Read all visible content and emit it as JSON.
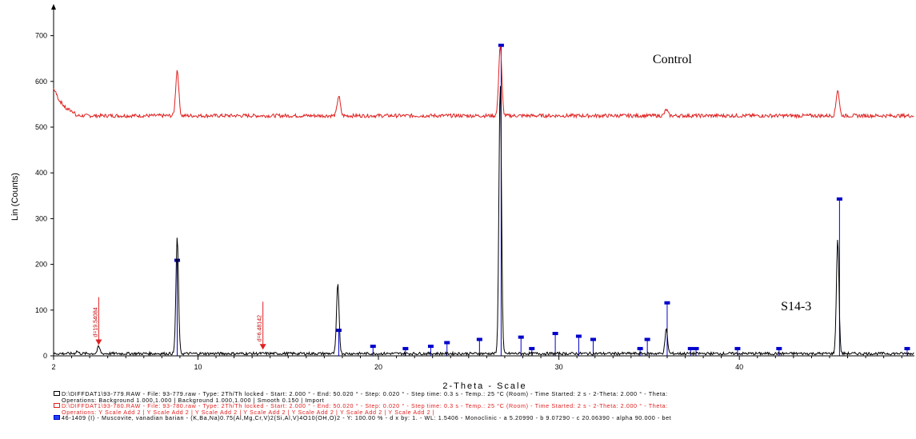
{
  "chart_data": {
    "type": "line",
    "title": "",
    "xlabel": "2-Theta - Scale",
    "ylabel": "Lin (Counts)",
    "xlim": [
      2,
      49.7
    ],
    "ylim": [
      0,
      750
    ],
    "x_ticks": [
      2,
      10,
      20,
      30,
      40
    ],
    "y_ticks": [
      0,
      100,
      200,
      300,
      400,
      500,
      600,
      700
    ],
    "grid": false,
    "series": [
      {
        "name": "Control",
        "color": "#e02020",
        "baseline": 525,
        "start_hump": [
          [
            2.0,
            585
          ],
          [
            2.3,
            560
          ],
          [
            2.7,
            540
          ],
          [
            3.2,
            532
          ]
        ],
        "peaks": [
          [
            8.85,
            625
          ],
          [
            17.8,
            568
          ],
          [
            26.75,
            678
          ],
          [
            35.95,
            538
          ],
          [
            45.45,
            582
          ]
        ]
      },
      {
        "name": "S14-3",
        "color": "#000000",
        "baseline": 5,
        "peaks": [
          [
            3.3,
            10
          ],
          [
            4.5,
            20
          ],
          [
            8.85,
            258
          ],
          [
            17.75,
            157
          ],
          [
            26.75,
            598
          ],
          [
            35.95,
            58
          ],
          [
            45.45,
            256
          ]
        ]
      }
    ],
    "reference_sticks": {
      "name": "46-1409 (I) - Muscovite, vanadian barian",
      "color": "#0000cc",
      "peaks": [
        [
          8.85,
          208
        ],
        [
          17.8,
          55
        ],
        [
          19.7,
          20
        ],
        [
          21.5,
          15
        ],
        [
          22.9,
          20
        ],
        [
          23.8,
          28
        ],
        [
          25.6,
          35
        ],
        [
          26.8,
          678
        ],
        [
          27.9,
          40
        ],
        [
          28.5,
          15
        ],
        [
          29.8,
          48
        ],
        [
          31.1,
          42
        ],
        [
          31.9,
          35
        ],
        [
          34.5,
          15
        ],
        [
          34.9,
          35
        ],
        [
          36.0,
          115
        ],
        [
          37.3,
          15
        ],
        [
          37.6,
          15
        ],
        [
          39.9,
          15
        ],
        [
          42.2,
          15
        ],
        [
          45.55,
          342
        ],
        [
          49.3,
          15
        ]
      ]
    },
    "annotations": [
      {
        "x": 4.5,
        "y": 20,
        "label": "d=19.54084",
        "color": "#e02020"
      },
      {
        "x": 13.6,
        "y": 10,
        "label": "d=6.48142",
        "color": "#e02020"
      }
    ],
    "series_labels": [
      {
        "text": "Control",
        "x": 35.2,
        "y": 640
      },
      {
        "text": "S14-3",
        "x": 42.3,
        "y": 100
      }
    ],
    "legend": [
      "D:\\DIFFDAT1\\93-779.RAW - File: 93-779.raw - Type: 2Th/Th locked - Start: 2.000 ° - End: 50.020 ° - Step: 0.020 ° - Step time: 0.3 s - Temp.: 25 °C (Room) - Time Started: 2 s - 2-Theta: 2.000 ° - Theta:",
      "Operations: Background 1.000,1.000 | Background 1.000,1.000 | Smooth 0.150 | Import",
      "D:\\DIFFDAT1\\93-780.RAW - File: 93-780.raw - Type: 2Th/Th locked - Start: 2.000 ° - End: 50.020 ° - Step: 0.020 ° - Step time: 0.3 s - Temp.: 25 °C (Room) - Time Started: 2 s - 2-Theta: 2.000 ° - Theta:",
      "Operations: Y Scale Add 2 | Y Scale Add 2 | Y Scale Add 2 | Y Scale Add 2 | Y Scale Add 2 | Y Scale Add 2 | Y Scale Add 2 |",
      "46-1409 (I) - Muscovite, vanadian barian - (K,Ba,Na)0.75(Al,Mg,Cr,V)2(Si,Al,V)4O10(OH,O)2 - Y: 100.00 % - d x by: 1. - WL: 1.5406 - Monoclinic - a 5.20990 - b 9.07290 - c 20.06390 - alpha 90.000 - bet"
    ]
  }
}
